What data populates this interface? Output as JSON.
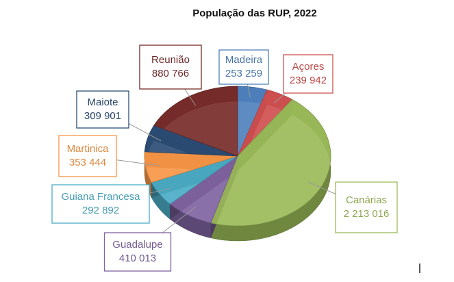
{
  "chart_data": {
    "type": "pie",
    "title": "População das RUP, 2022",
    "categories": [
      "Madeira",
      "Açores",
      "Canárias",
      "Guadalupe",
      "Guiana Francesa",
      "Martinica",
      "Maiote",
      "Reunião"
    ],
    "values": [
      253259,
      239942,
      2213016,
      410013,
      292892,
      353444,
      309901,
      880766
    ],
    "value_labels": [
      "253 259",
      "239 942",
      "2 213 016",
      "410 013",
      "292 892",
      "353 444",
      "309 901",
      "880 766"
    ],
    "colors": [
      "#4f81bd",
      "#d05050",
      "#9bbb59",
      "#8064a2",
      "#4bacc6",
      "#f79646",
      "#2c4d75",
      "#772c2a"
    ]
  }
}
